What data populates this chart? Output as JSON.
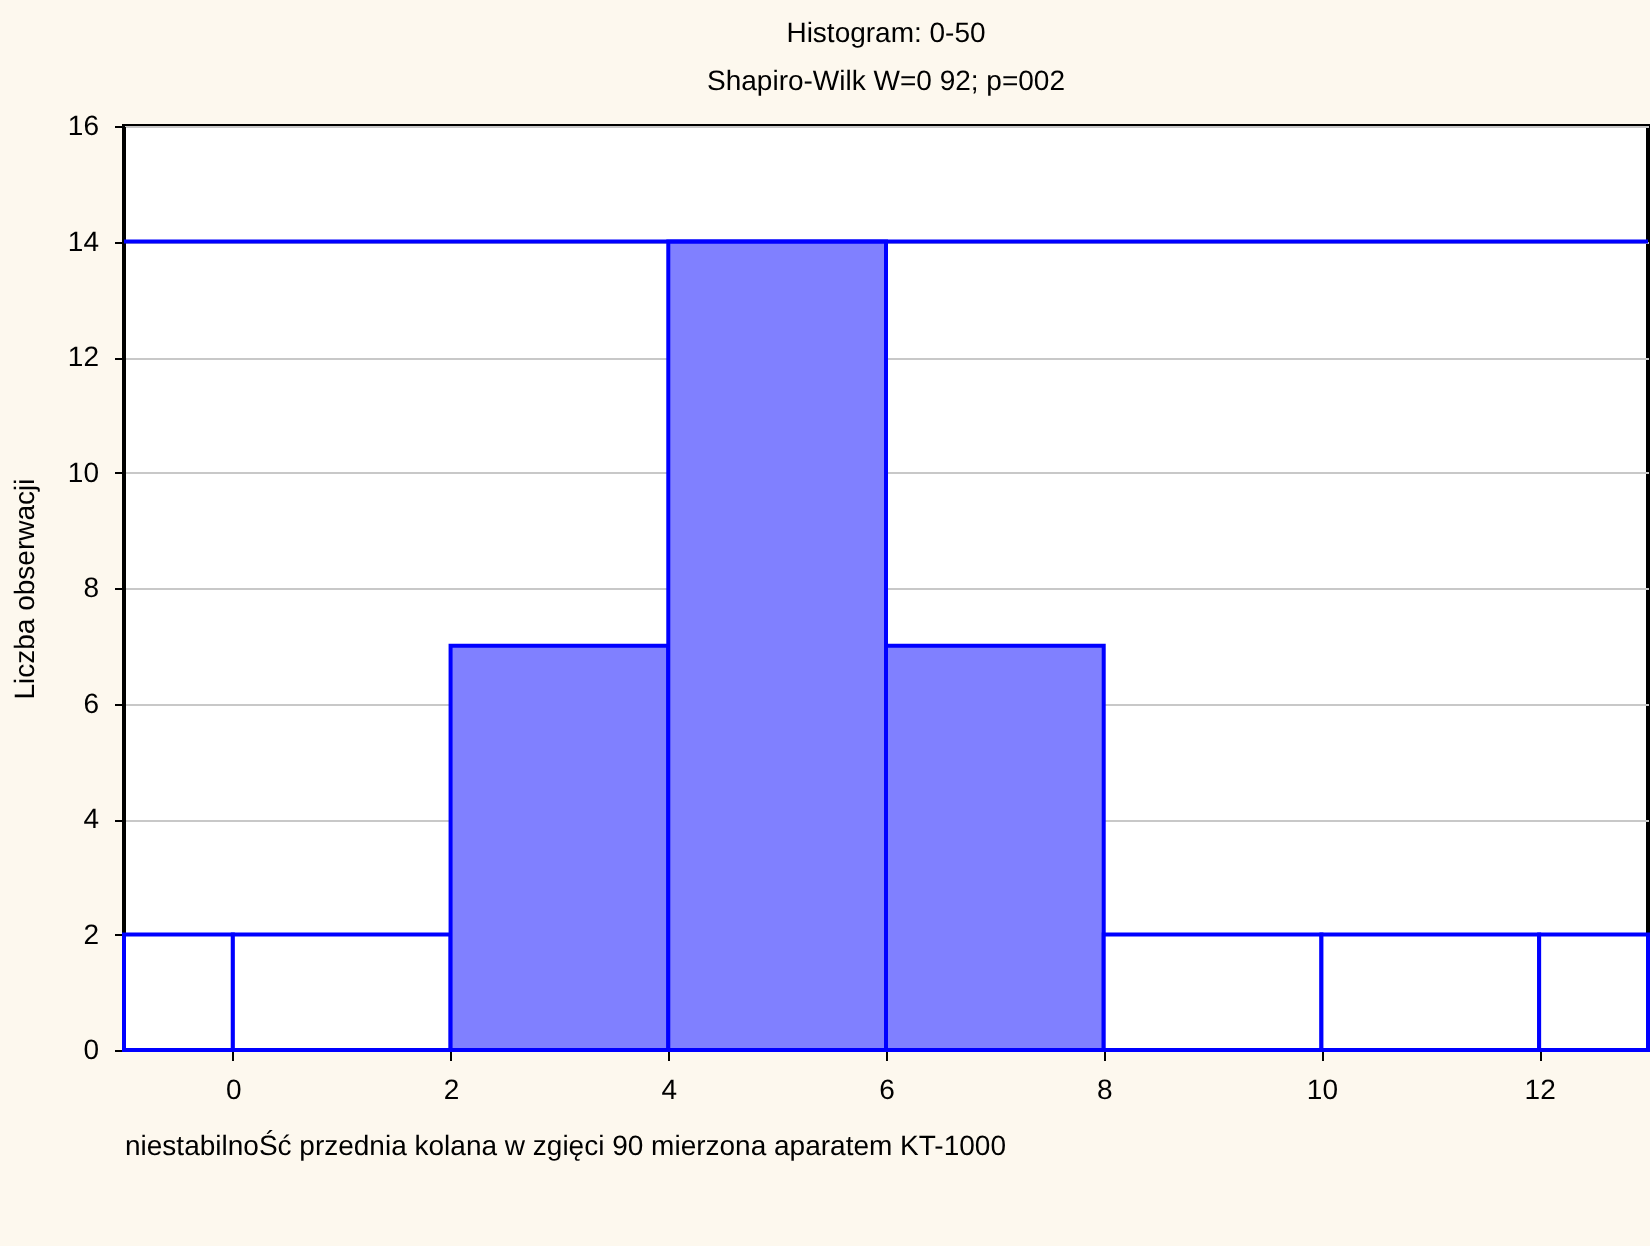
{
  "chart_data": {
    "type": "histogram",
    "title": "Histogram: 0-50",
    "subtitle": "Shapiro-Wilk W=0 92; p=002",
    "xlabel": "niestabilnoŚć przednia kolana w zgięci 90 mierzona aparatem KT-1000",
    "ylabel": "Liczba obserwacji",
    "bins": [
      -1,
      0,
      2,
      4,
      6,
      8,
      10,
      12,
      13
    ],
    "values": [
      2,
      2,
      7,
      14,
      7,
      2,
      2,
      2
    ],
    "colors": [
      "#ffffff",
      "#ffffff",
      "#8080ff",
      "#8080ff",
      "#8080ff",
      "#ffffff",
      "#ffffff",
      "#ffffff"
    ],
    "xlim": [
      -1,
      13
    ],
    "xticks": [
      0,
      2,
      4,
      6,
      8,
      10,
      12
    ],
    "ylim": [
      0,
      16
    ],
    "yticks": [
      0,
      2,
      4,
      6,
      8,
      10,
      12,
      14,
      16
    ],
    "grid": "y",
    "ref_lines": [
      {
        "axis": "y",
        "value": 14,
        "color": "#0000ff"
      }
    ]
  }
}
